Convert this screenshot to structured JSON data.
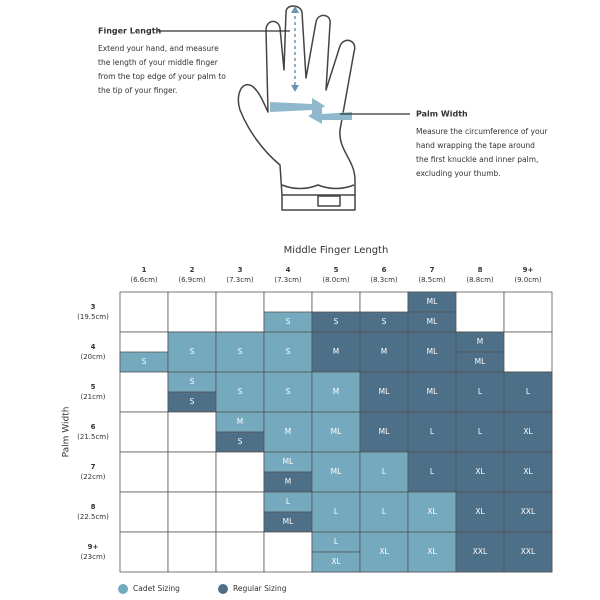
{
  "guide": {
    "finger": {
      "title": "Finger Length",
      "lines": [
        "Extend your hand, and measure",
        "the length of your middle finger",
        "from the top edge of your palm to",
        "the tip of your finger."
      ]
    },
    "palm": {
      "title": "Palm Width",
      "lines": [
        "Measure the circumference of your",
        "hand wrapping the tape around",
        "the first knuckle and inner palm,",
        "excluding your thumb."
      ]
    }
  },
  "table": {
    "column_title": "Middle Finger Length",
    "row_title": "Palm Width",
    "columns": [
      {
        "label": "1",
        "sub": "(6.6cm)"
      },
      {
        "label": "2",
        "sub": "(6.9cm)"
      },
      {
        "label": "3",
        "sub": "(7.3cm)"
      },
      {
        "label": "4",
        "sub": "(7.3cm)"
      },
      {
        "label": "5",
        "sub": "(8.0cm)"
      },
      {
        "label": "6",
        "sub": "(8.3cm)"
      },
      {
        "label": "7",
        "sub": "(8.5cm)"
      },
      {
        "label": "8",
        "sub": "(8.8cm)"
      },
      {
        "label": "9+",
        "sub": "(9.0cm)"
      }
    ],
    "rows": [
      {
        "label": "3",
        "sub": "(19.5cm)",
        "cells": [
          [],
          [],
          [],
          [
            null,
            {
              "label": "S",
              "sizing": 0
            }
          ],
          [
            null,
            {
              "label": "S",
              "sizing": 1
            }
          ],
          [
            null,
            {
              "label": "S",
              "sizing": 1
            }
          ],
          [
            {
              "label": "ML",
              "sizing": 1
            },
            {
              "label": "ML",
              "sizing": 1
            }
          ],
          [],
          []
        ]
      },
      {
        "label": "4",
        "sub": "(20cm)",
        "cells": [
          [
            null,
            {
              "label": "S",
              "sizing": 0
            }
          ],
          [
            {
              "label": "S",
              "sizing": 0
            }
          ],
          [
            {
              "label": "S",
              "sizing": 0
            }
          ],
          [
            {
              "label": "S",
              "sizing": 0
            }
          ],
          [
            {
              "label": "M",
              "sizing": 1
            }
          ],
          [
            {
              "label": "M",
              "sizing": 1
            }
          ],
          [
            {
              "label": "ML",
              "sizing": 1
            }
          ],
          [
            {
              "label": "M",
              "sizing": 1
            },
            {
              "label": "ML",
              "sizing": 1
            }
          ],
          []
        ]
      },
      {
        "label": "5",
        "sub": "(21cm)",
        "cells": [
          [],
          [
            {
              "label": "S",
              "sizing": 0
            },
            {
              "label": "S",
              "sizing": 1
            }
          ],
          [
            {
              "label": "S",
              "sizing": 0
            }
          ],
          [
            {
              "label": "S",
              "sizing": 0
            }
          ],
          [
            {
              "label": "M",
              "sizing": 0
            }
          ],
          [
            {
              "label": "ML",
              "sizing": 1
            }
          ],
          [
            {
              "label": "ML",
              "sizing": 1
            }
          ],
          [
            {
              "label": "L",
              "sizing": 1
            }
          ],
          [
            {
              "label": "L",
              "sizing": 1
            }
          ]
        ]
      },
      {
        "label": "6",
        "sub": "(21.5cm)",
        "cells": [
          [],
          [],
          [
            {
              "label": "M",
              "sizing": 0
            },
            {
              "label": "S",
              "sizing": 1
            }
          ],
          [
            {
              "label": "M",
              "sizing": 0
            }
          ],
          [
            {
              "label": "ML",
              "sizing": 0
            }
          ],
          [
            {
              "label": "ML",
              "sizing": 1
            }
          ],
          [
            {
              "label": "L",
              "sizing": 1
            }
          ],
          [
            {
              "label": "L",
              "sizing": 1
            }
          ],
          [
            {
              "label": "XL",
              "sizing": 1
            }
          ]
        ]
      },
      {
        "label": "7",
        "sub": "(22cm)",
        "cells": [
          [],
          [],
          [],
          [
            {
              "label": "ML",
              "sizing": 0
            },
            {
              "label": "M",
              "sizing": 1
            }
          ],
          [
            {
              "label": "ML",
              "sizing": 0
            }
          ],
          [
            {
              "label": "L",
              "sizing": 0
            }
          ],
          [
            {
              "label": "L",
              "sizing": 1
            }
          ],
          [
            {
              "label": "XL",
              "sizing": 1
            }
          ],
          [
            {
              "label": "XL",
              "sizing": 1
            }
          ]
        ]
      },
      {
        "label": "8",
        "sub": "(22.5cm)",
        "cells": [
          [],
          [],
          [],
          [
            {
              "label": "L",
              "sizing": 0
            },
            {
              "label": "ML",
              "sizing": 1
            }
          ],
          [
            {
              "label": "L",
              "sizing": 0
            }
          ],
          [
            {
              "label": "L",
              "sizing": 0
            }
          ],
          [
            {
              "label": "XL",
              "sizing": 0
            }
          ],
          [
            {
              "label": "XL",
              "sizing": 1
            }
          ],
          [
            {
              "label": "XXL",
              "sizing": 1
            }
          ]
        ]
      },
      {
        "label": "9+",
        "sub": "(23cm)",
        "cells": [
          [],
          [],
          [],
          [],
          [
            {
              "label": "L",
              "sizing": 0
            },
            {
              "label": "XL",
              "sizing": 0
            }
          ],
          [
            {
              "label": "XL",
              "sizing": 0
            }
          ],
          [
            {
              "label": "XL",
              "sizing": 0
            }
          ],
          [
            {
              "label": "XXL",
              "sizing": 1
            }
          ],
          [
            {
              "label": "XXL",
              "sizing": 1
            }
          ]
        ]
      }
    ]
  },
  "legend": [
    {
      "label": "Cadet Sizing",
      "color": "#74a9be"
    },
    {
      "label": "Regular Sizing",
      "color": "#4e6f88"
    }
  ]
}
